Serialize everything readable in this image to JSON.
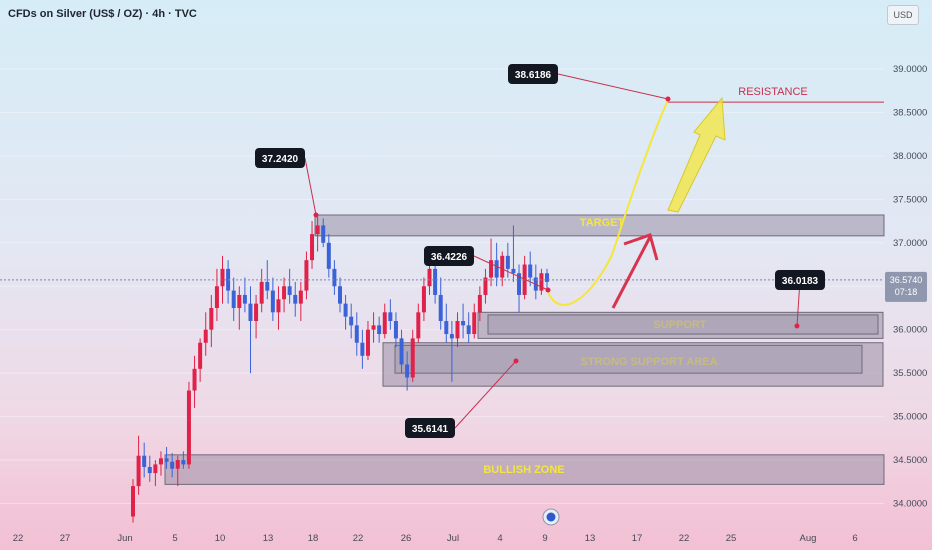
{
  "header": {
    "title": "CFDs on Silver (US$ / OZ) · 4h · TVC",
    "currency": "USD"
  },
  "chart_data": {
    "type": "candlestick",
    "y_ticks": [
      "39.0000",
      "38.5000",
      "38.0000",
      "37.5000",
      "37.0000",
      "36.5000",
      "36.0000",
      "35.5000",
      "35.0000",
      "34.5000",
      "34.0000"
    ],
    "x_ticks": [
      "22",
      "27",
      "Jun",
      "5",
      "10",
      "13",
      "18",
      "22",
      "26",
      "Jul",
      "4",
      "9",
      "13",
      "17",
      "22",
      "25",
      "Aug",
      "6"
    ],
    "current_price": "36.5740",
    "countdown": "07:18",
    "colors": {
      "up": "#e0214a",
      "down": "#3b63d8",
      "accent": "#f4e63a",
      "resistance": "#c8304c"
    },
    "zones": [
      {
        "name": "TARGET",
        "low": 37.08,
        "high": 37.32
      },
      {
        "name": "SUPPORT",
        "low": 35.9,
        "high": 36.2
      },
      {
        "name": "STRONG SUPPORT AREA",
        "low": 35.35,
        "high": 35.85
      },
      {
        "name": "BULLISH ZONE",
        "low": 34.22,
        "high": 34.56
      }
    ],
    "resistance": {
      "label": "RESISTANCE",
      "value": 38.6186
    },
    "callouts": [
      "38.6186",
      "37.2420",
      "36.4226",
      "36.0183",
      "35.6141"
    ],
    "candles_ohlc": [
      [
        33.85,
        34.28,
        33.78,
        34.2
      ],
      [
        34.2,
        34.78,
        34.1,
        34.55
      ],
      [
        34.55,
        34.7,
        34.3,
        34.42
      ],
      [
        34.42,
        34.55,
        34.25,
        34.35
      ],
      [
        34.35,
        34.5,
        34.2,
        34.45
      ],
      [
        34.45,
        34.6,
        34.32,
        34.52
      ],
      [
        34.52,
        34.65,
        34.4,
        34.48
      ],
      [
        34.48,
        34.58,
        34.3,
        34.4
      ],
      [
        34.4,
        34.55,
        34.2,
        34.5
      ],
      [
        34.5,
        34.6,
        34.4,
        34.45
      ],
      [
        34.45,
        35.4,
        34.4,
        35.3
      ],
      [
        35.3,
        35.7,
        35.1,
        35.55
      ],
      [
        35.55,
        35.9,
        35.4,
        35.85
      ],
      [
        35.85,
        36.2,
        35.7,
        36.0
      ],
      [
        36.0,
        36.4,
        35.8,
        36.25
      ],
      [
        36.25,
        36.7,
        36.1,
        36.5
      ],
      [
        36.5,
        36.85,
        36.3,
        36.7
      ],
      [
        36.7,
        36.8,
        36.3,
        36.45
      ],
      [
        36.45,
        36.6,
        36.1,
        36.25
      ],
      [
        36.25,
        36.5,
        36.0,
        36.4
      ],
      [
        36.4,
        36.6,
        36.2,
        36.3
      ],
      [
        36.3,
        36.5,
        35.5,
        36.1
      ],
      [
        36.1,
        36.4,
        35.9,
        36.3
      ],
      [
        36.3,
        36.7,
        36.2,
        36.55
      ],
      [
        36.55,
        36.8,
        36.35,
        36.45
      ],
      [
        36.45,
        36.6,
        36.1,
        36.2
      ],
      [
        36.2,
        36.5,
        36.0,
        36.35
      ],
      [
        36.35,
        36.6,
        36.2,
        36.5
      ],
      [
        36.5,
        36.7,
        36.3,
        36.4
      ],
      [
        36.4,
        36.55,
        36.15,
        36.3
      ],
      [
        36.3,
        36.55,
        36.1,
        36.45
      ],
      [
        36.45,
        36.9,
        36.35,
        36.8
      ],
      [
        36.8,
        37.25,
        36.7,
        37.1
      ],
      [
        37.1,
        37.3,
        36.9,
        37.2
      ],
      [
        37.2,
        37.28,
        36.95,
        37.0
      ],
      [
        37.0,
        37.1,
        36.6,
        36.7
      ],
      [
        36.7,
        36.8,
        36.4,
        36.5
      ],
      [
        36.5,
        36.6,
        36.2,
        36.3
      ],
      [
        36.3,
        36.4,
        36.0,
        36.15
      ],
      [
        36.15,
        36.3,
        35.9,
        36.05
      ],
      [
        36.05,
        36.2,
        35.7,
        35.85
      ],
      [
        35.85,
        36.0,
        35.55,
        35.7
      ],
      [
        35.7,
        36.1,
        35.65,
        36.0
      ],
      [
        36.0,
        36.2,
        35.85,
        36.05
      ],
      [
        36.05,
        36.15,
        35.85,
        35.95
      ],
      [
        35.95,
        36.3,
        35.9,
        36.2
      ],
      [
        36.2,
        36.35,
        36.0,
        36.1
      ],
      [
        36.1,
        36.2,
        35.8,
        35.9
      ],
      [
        35.9,
        36.0,
        35.5,
        35.6
      ],
      [
        35.6,
        35.75,
        35.3,
        35.45
      ],
      [
        35.45,
        36.0,
        35.4,
        35.9
      ],
      [
        35.9,
        36.3,
        35.85,
        36.2
      ],
      [
        36.2,
        36.6,
        36.1,
        36.5
      ],
      [
        36.5,
        36.8,
        36.4,
        36.7
      ],
      [
        36.7,
        36.8,
        36.3,
        36.4
      ],
      [
        36.4,
        36.6,
        36.0,
        36.1
      ],
      [
        36.1,
        36.3,
        35.85,
        35.95
      ],
      [
        35.95,
        36.1,
        35.4,
        35.9
      ],
      [
        35.9,
        36.2,
        35.8,
        36.1
      ],
      [
        36.1,
        36.3,
        35.9,
        36.05
      ],
      [
        36.05,
        36.2,
        35.85,
        35.95
      ],
      [
        35.95,
        36.3,
        35.9,
        36.2
      ],
      [
        36.2,
        36.5,
        36.1,
        36.4
      ],
      [
        36.4,
        36.7,
        36.3,
        36.6
      ],
      [
        36.6,
        37.05,
        36.5,
        36.8
      ],
      [
        36.8,
        37.0,
        36.5,
        36.6
      ],
      [
        36.6,
        36.9,
        36.5,
        36.85
      ],
      [
        36.85,
        37.0,
        36.6,
        36.7
      ],
      [
        36.7,
        37.2,
        36.55,
        36.65
      ],
      [
        36.65,
        36.75,
        36.2,
        36.4
      ],
      [
        36.4,
        36.85,
        36.35,
        36.75
      ],
      [
        36.75,
        36.9,
        36.5,
        36.6
      ],
      [
        36.6,
        36.75,
        36.35,
        36.45
      ],
      [
        36.45,
        36.7,
        36.4,
        36.65
      ],
      [
        36.65,
        36.7,
        36.45,
        36.55
      ]
    ],
    "ylim": [
      33.7,
      39.4
    ],
    "xlabel": "",
    "ylabel": ""
  }
}
